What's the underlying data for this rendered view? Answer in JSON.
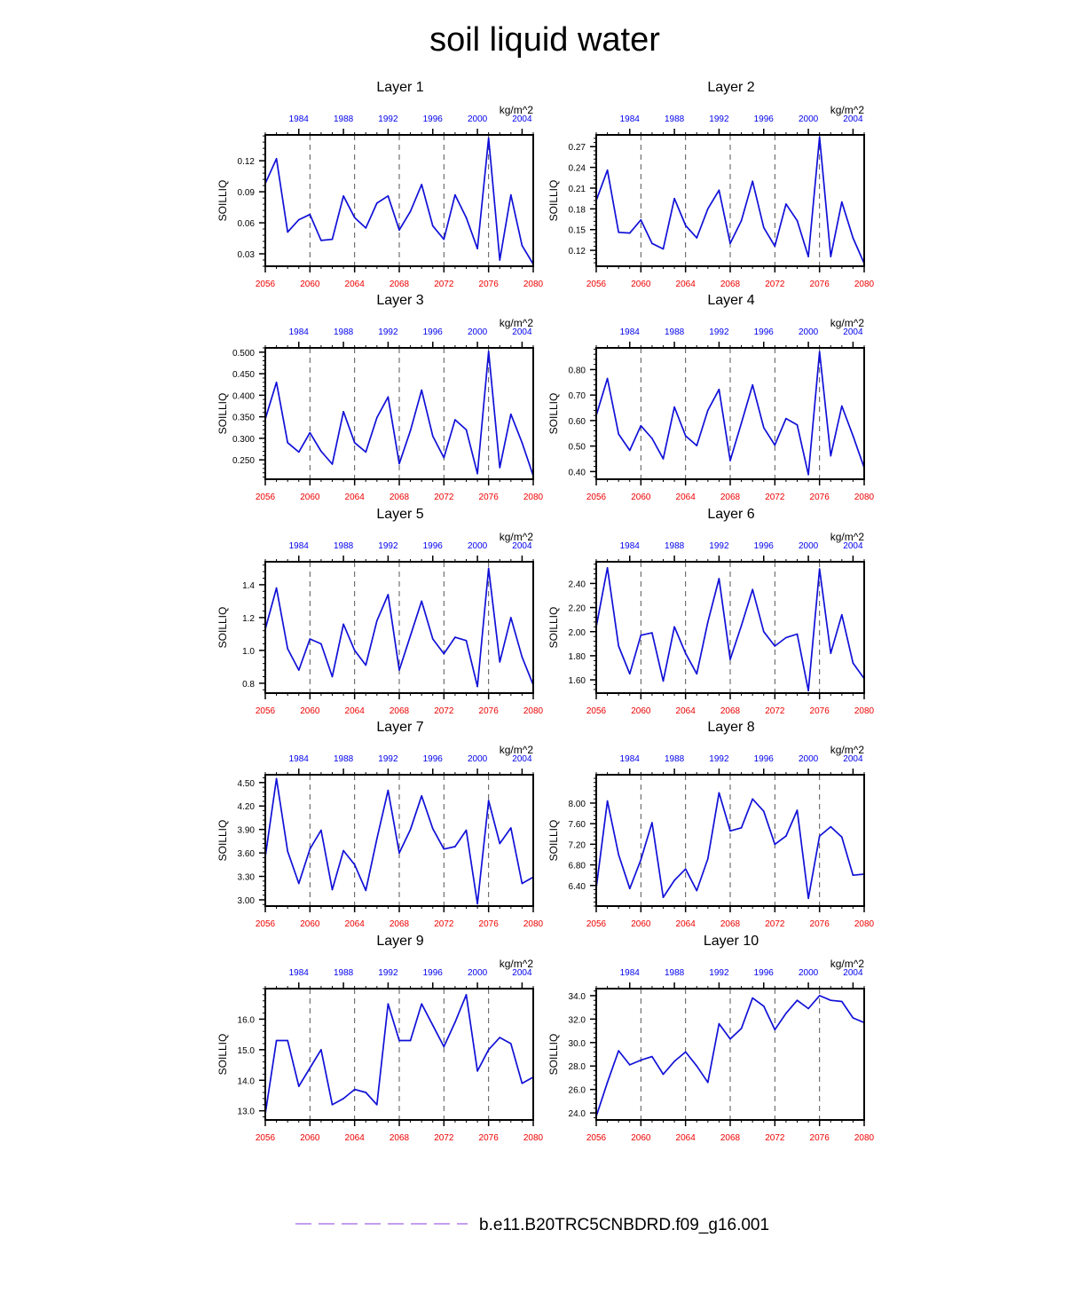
{
  "title": "soil liquid water",
  "legend": {
    "label": "b.e11.B20TRC5CNBDRD.f09_g16.001",
    "line_color": "#b27fe8",
    "line_style": "dashed"
  },
  "colors": {
    "line": "#1010d8",
    "top_axis": "#0000ee",
    "bottom_axis": "#ee0000",
    "vertical_dash": "#555555"
  },
  "chart_data": [
    {
      "type": "line",
      "title": "Layer 1",
      "ylabel": "SOILLIQ",
      "units": "kg/m^2",
      "xlim": [
        2056,
        2080
      ],
      "ylim": [
        0.018,
        0.145
      ],
      "x_ticks": [
        2056,
        2060,
        2064,
        2068,
        2072,
        2076,
        2080
      ],
      "top_xlim": [
        1981,
        2005
      ],
      "top_ticks": [
        1984,
        1988,
        1992,
        1996,
        2000,
        2004
      ],
      "vertical_lines": [
        2060,
        2064,
        2068,
        2072,
        2076
      ],
      "y_ticks": [
        0.03,
        0.06,
        0.09,
        0.12
      ],
      "y_labels": [
        "0.03",
        "0.06",
        "0.09",
        "0.12"
      ],
      "x": [
        2056,
        2057,
        2058,
        2059,
        2060,
        2061,
        2062,
        2063,
        2064,
        2065,
        2066,
        2067,
        2068,
        2069,
        2070,
        2071,
        2072,
        2073,
        2074,
        2075,
        2076,
        2077,
        2078,
        2079,
        2080
      ],
      "values": [
        0.098,
        0.122,
        0.051,
        0.063,
        0.068,
        0.043,
        0.044,
        0.086,
        0.065,
        0.055,
        0.079,
        0.086,
        0.053,
        0.071,
        0.097,
        0.057,
        0.044,
        0.087,
        0.065,
        0.035,
        0.142,
        0.024,
        0.087,
        0.038,
        0.02
      ]
    },
    {
      "type": "line",
      "title": "Layer 2",
      "ylabel": "SOILLIQ",
      "units": "kg/m^2",
      "xlim": [
        2056,
        2080
      ],
      "ylim": [
        0.097,
        0.287
      ],
      "x_ticks": [
        2056,
        2060,
        2064,
        2068,
        2072,
        2076,
        2080
      ],
      "top_xlim": [
        1981,
        2005
      ],
      "top_ticks": [
        1984,
        1988,
        1992,
        1996,
        2000,
        2004
      ],
      "vertical_lines": [
        2060,
        2064,
        2068,
        2072,
        2076
      ],
      "y_ticks": [
        0.12,
        0.15,
        0.18,
        0.21,
        0.24,
        0.27
      ],
      "y_labels": [
        "0.12",
        "0.15",
        "0.18",
        "0.21",
        "0.24",
        "0.27"
      ],
      "x": [
        2056,
        2057,
        2058,
        2059,
        2060,
        2061,
        2062,
        2063,
        2064,
        2065,
        2066,
        2067,
        2068,
        2069,
        2070,
        2071,
        2072,
        2073,
        2074,
        2075,
        2076,
        2077,
        2078,
        2079,
        2080
      ],
      "values": [
        0.192,
        0.236,
        0.146,
        0.145,
        0.164,
        0.13,
        0.122,
        0.195,
        0.156,
        0.138,
        0.18,
        0.207,
        0.13,
        0.163,
        0.22,
        0.153,
        0.126,
        0.187,
        0.163,
        0.111,
        0.284,
        0.111,
        0.19,
        0.138,
        0.101
      ]
    },
    {
      "type": "line",
      "title": "Layer 3",
      "ylabel": "SOILLIQ",
      "units": "kg/m^2",
      "xlim": [
        2056,
        2080
      ],
      "ylim": [
        0.205,
        0.51
      ],
      "x_ticks": [
        2056,
        2060,
        2064,
        2068,
        2072,
        2076,
        2080
      ],
      "top_xlim": [
        1981,
        2005
      ],
      "top_ticks": [
        1984,
        1988,
        1992,
        1996,
        2000,
        2004
      ],
      "vertical_lines": [
        2060,
        2064,
        2068,
        2072,
        2076
      ],
      "y_ticks": [
        0.25,
        0.3,
        0.35,
        0.4,
        0.45,
        0.5
      ],
      "y_labels": [
        "0.250",
        "0.300",
        "0.350",
        "0.400",
        "0.450",
        "0.500"
      ],
      "x": [
        2056,
        2057,
        2058,
        2059,
        2060,
        2061,
        2062,
        2063,
        2064,
        2065,
        2066,
        2067,
        2068,
        2069,
        2070,
        2071,
        2072,
        2073,
        2074,
        2075,
        2076,
        2077,
        2078,
        2079,
        2080
      ],
      "values": [
        0.345,
        0.43,
        0.29,
        0.268,
        0.313,
        0.27,
        0.24,
        0.362,
        0.29,
        0.268,
        0.348,
        0.396,
        0.241,
        0.318,
        0.412,
        0.305,
        0.255,
        0.343,
        0.32,
        0.218,
        0.502,
        0.232,
        0.356,
        0.29,
        0.213
      ]
    },
    {
      "type": "line",
      "title": "Layer 4",
      "ylabel": "SOILLIQ",
      "units": "kg/m^2",
      "xlim": [
        2056,
        2080
      ],
      "ylim": [
        0.37,
        0.885
      ],
      "x_ticks": [
        2056,
        2060,
        2064,
        2068,
        2072,
        2076,
        2080
      ],
      "top_xlim": [
        1981,
        2005
      ],
      "top_ticks": [
        1984,
        1988,
        1992,
        1996,
        2000,
        2004
      ],
      "vertical_lines": [
        2060,
        2064,
        2068,
        2072,
        2076
      ],
      "y_ticks": [
        0.4,
        0.5,
        0.6,
        0.7,
        0.8
      ],
      "y_labels": [
        "0.40",
        "0.50",
        "0.60",
        "0.70",
        "0.80"
      ],
      "x": [
        2056,
        2057,
        2058,
        2059,
        2060,
        2061,
        2062,
        2063,
        2064,
        2065,
        2066,
        2067,
        2068,
        2069,
        2070,
        2071,
        2072,
        2073,
        2074,
        2075,
        2076,
        2077,
        2078,
        2079,
        2080
      ],
      "values": [
        0.62,
        0.765,
        0.547,
        0.483,
        0.58,
        0.53,
        0.45,
        0.653,
        0.54,
        0.502,
        0.64,
        0.722,
        0.443,
        0.59,
        0.74,
        0.572,
        0.504,
        0.608,
        0.583,
        0.388,
        0.87,
        0.462,
        0.657,
        0.54,
        0.415
      ]
    },
    {
      "type": "line",
      "title": "Layer 5",
      "ylabel": "SOILLIQ",
      "units": "kg/m^2",
      "xlim": [
        2056,
        2080
      ],
      "ylim": [
        0.74,
        1.54
      ],
      "x_ticks": [
        2056,
        2060,
        2064,
        2068,
        2072,
        2076,
        2080
      ],
      "top_xlim": [
        1981,
        2005
      ],
      "top_ticks": [
        1984,
        1988,
        1992,
        1996,
        2000,
        2004
      ],
      "vertical_lines": [
        2060,
        2064,
        2068,
        2072,
        2076
      ],
      "y_ticks": [
        0.8,
        1.0,
        1.2,
        1.4
      ],
      "y_labels": [
        "0.8",
        "1.0",
        "1.2",
        "1.4"
      ],
      "x": [
        2056,
        2057,
        2058,
        2059,
        2060,
        2061,
        2062,
        2063,
        2064,
        2065,
        2066,
        2067,
        2068,
        2069,
        2070,
        2071,
        2072,
        2073,
        2074,
        2075,
        2076,
        2077,
        2078,
        2079,
        2080
      ],
      "values": [
        1.13,
        1.38,
        1.01,
        0.88,
        1.07,
        1.04,
        0.84,
        1.16,
        1.0,
        0.91,
        1.18,
        1.34,
        0.88,
        1.09,
        1.3,
        1.07,
        0.98,
        1.08,
        1.06,
        0.78,
        1.5,
        0.93,
        1.2,
        0.96,
        0.79
      ]
    },
    {
      "type": "line",
      "title": "Layer 6",
      "ylabel": "SOILLIQ",
      "units": "kg/m^2",
      "xlim": [
        2056,
        2080
      ],
      "ylim": [
        1.49,
        2.58
      ],
      "x_ticks": [
        2056,
        2060,
        2064,
        2068,
        2072,
        2076,
        2080
      ],
      "top_xlim": [
        1981,
        2005
      ],
      "top_ticks": [
        1984,
        1988,
        1992,
        1996,
        2000,
        2004
      ],
      "vertical_lines": [
        2060,
        2064,
        2068,
        2072,
        2076
      ],
      "y_ticks": [
        1.6,
        1.8,
        2.0,
        2.2,
        2.4
      ],
      "y_labels": [
        "1.60",
        "1.80",
        "2.00",
        "2.20",
        "2.40"
      ],
      "x": [
        2056,
        2057,
        2058,
        2059,
        2060,
        2061,
        2062,
        2063,
        2064,
        2065,
        2066,
        2067,
        2068,
        2069,
        2070,
        2071,
        2072,
        2073,
        2074,
        2075,
        2076,
        2077,
        2078,
        2079,
        2080
      ],
      "values": [
        2.04,
        2.53,
        1.88,
        1.65,
        1.97,
        1.99,
        1.59,
        2.04,
        1.82,
        1.65,
        2.08,
        2.44,
        1.77,
        2.05,
        2.35,
        2.0,
        1.88,
        1.95,
        1.98,
        1.51,
        2.52,
        1.82,
        2.14,
        1.74,
        1.61
      ]
    },
    {
      "type": "line",
      "title": "Layer 7",
      "ylabel": "SOILLIQ",
      "units": "kg/m^2",
      "xlim": [
        2056,
        2080
      ],
      "ylim": [
        2.92,
        4.6
      ],
      "x_ticks": [
        2056,
        2060,
        2064,
        2068,
        2072,
        2076,
        2080
      ],
      "top_xlim": [
        1981,
        2005
      ],
      "top_ticks": [
        1984,
        1988,
        1992,
        1996,
        2000,
        2004
      ],
      "vertical_lines": [
        2060,
        2064,
        2068,
        2072,
        2076
      ],
      "y_ticks": [
        3.0,
        3.3,
        3.6,
        3.9,
        4.2,
        4.5
      ],
      "y_labels": [
        "3.00",
        "3.30",
        "3.60",
        "3.90",
        "4.20",
        "4.50"
      ],
      "x": [
        2056,
        2057,
        2058,
        2059,
        2060,
        2061,
        2062,
        2063,
        2064,
        2065,
        2066,
        2067,
        2068,
        2069,
        2070,
        2071,
        2072,
        2073,
        2074,
        2075,
        2076,
        2077,
        2078,
        2079,
        2080
      ],
      "values": [
        3.55,
        4.55,
        3.62,
        3.21,
        3.65,
        3.89,
        3.13,
        3.63,
        3.45,
        3.12,
        3.78,
        4.4,
        3.6,
        3.9,
        4.33,
        3.91,
        3.65,
        3.68,
        3.89,
        2.95,
        4.27,
        3.72,
        3.92,
        3.21,
        3.29
      ]
    },
    {
      "type": "line",
      "title": "Layer 8",
      "ylabel": "SOILLIQ",
      "units": "kg/m^2",
      "xlim": [
        2056,
        2080
      ],
      "ylim": [
        6.0,
        8.55
      ],
      "x_ticks": [
        2056,
        2060,
        2064,
        2068,
        2072,
        2076,
        2080
      ],
      "top_xlim": [
        1981,
        2005
      ],
      "top_ticks": [
        1984,
        1988,
        1992,
        1996,
        2000,
        2004
      ],
      "vertical_lines": [
        2060,
        2064,
        2068,
        2072,
        2076
      ],
      "y_ticks": [
        6.4,
        6.8,
        7.2,
        7.6,
        8.0
      ],
      "y_labels": [
        "6.40",
        "6.80",
        "7.20",
        "7.60",
        "8.00"
      ],
      "x": [
        2056,
        2057,
        2058,
        2059,
        2060,
        2061,
        2062,
        2063,
        2064,
        2065,
        2066,
        2067,
        2068,
        2069,
        2070,
        2071,
        2072,
        2073,
        2074,
        2075,
        2076,
        2077,
        2078,
        2079,
        2080
      ],
      "values": [
        6.35,
        8.04,
        7.0,
        6.34,
        6.9,
        7.62,
        6.17,
        6.5,
        6.72,
        6.3,
        6.92,
        8.2,
        7.46,
        7.52,
        8.08,
        7.84,
        7.2,
        7.36,
        7.86,
        6.15,
        7.36,
        7.54,
        7.34,
        6.6,
        6.62
      ]
    },
    {
      "type": "line",
      "title": "Layer 9",
      "ylabel": "SOILLIQ",
      "units": "kg/m^2",
      "xlim": [
        2056,
        2080
      ],
      "ylim": [
        12.7,
        17.0
      ],
      "x_ticks": [
        2056,
        2060,
        2064,
        2068,
        2072,
        2076,
        2080
      ],
      "top_xlim": [
        1981,
        2005
      ],
      "top_ticks": [
        1984,
        1988,
        1992,
        1996,
        2000,
        2004
      ],
      "vertical_lines": [
        2060,
        2064,
        2068,
        2072,
        2076
      ],
      "y_ticks": [
        13.0,
        14.0,
        15.0,
        16.0
      ],
      "y_labels": [
        "13.0",
        "14.0",
        "15.0",
        "16.0"
      ],
      "x": [
        2056,
        2057,
        2058,
        2059,
        2060,
        2061,
        2062,
        2063,
        2064,
        2065,
        2066,
        2067,
        2068,
        2069,
        2070,
        2071,
        2072,
        2073,
        2074,
        2075,
        2076,
        2077,
        2078,
        2079,
        2080
      ],
      "values": [
        12.9,
        15.3,
        15.3,
        13.8,
        14.4,
        15.0,
        13.2,
        13.4,
        13.7,
        13.6,
        13.2,
        16.5,
        15.3,
        15.3,
        16.5,
        15.8,
        15.1,
        15.9,
        16.8,
        14.3,
        15.0,
        15.4,
        15.2,
        13.9,
        14.1
      ]
    },
    {
      "type": "line",
      "title": "Layer 10",
      "ylabel": "SOILLIQ",
      "units": "kg/m^2",
      "xlim": [
        2056,
        2080
      ],
      "ylim": [
        23.4,
        34.6
      ],
      "x_ticks": [
        2056,
        2060,
        2064,
        2068,
        2072,
        2076,
        2080
      ],
      "top_xlim": [
        1981,
        2005
      ],
      "top_ticks": [
        1984,
        1988,
        1992,
        1996,
        2000,
        2004
      ],
      "vertical_lines": [
        2060,
        2064,
        2068,
        2072,
        2076
      ],
      "y_ticks": [
        24.0,
        26.0,
        28.0,
        30.0,
        32.0,
        34.0
      ],
      "y_labels": [
        "24.0",
        "26.0",
        "28.0",
        "30.0",
        "32.0",
        "34.0"
      ],
      "x": [
        2056,
        2057,
        2058,
        2059,
        2060,
        2061,
        2062,
        2063,
        2064,
        2065,
        2066,
        2067,
        2068,
        2069,
        2070,
        2071,
        2072,
        2073,
        2074,
        2075,
        2076,
        2077,
        2078,
        2079,
        2080
      ],
      "values": [
        23.7,
        26.6,
        29.3,
        28.1,
        28.5,
        28.8,
        27.3,
        28.4,
        29.2,
        28.0,
        26.6,
        31.6,
        30.3,
        31.2,
        33.8,
        33.1,
        31.1,
        32.5,
        33.6,
        32.9,
        34.0,
        33.6,
        33.5,
        32.1,
        31.7
      ]
    }
  ]
}
